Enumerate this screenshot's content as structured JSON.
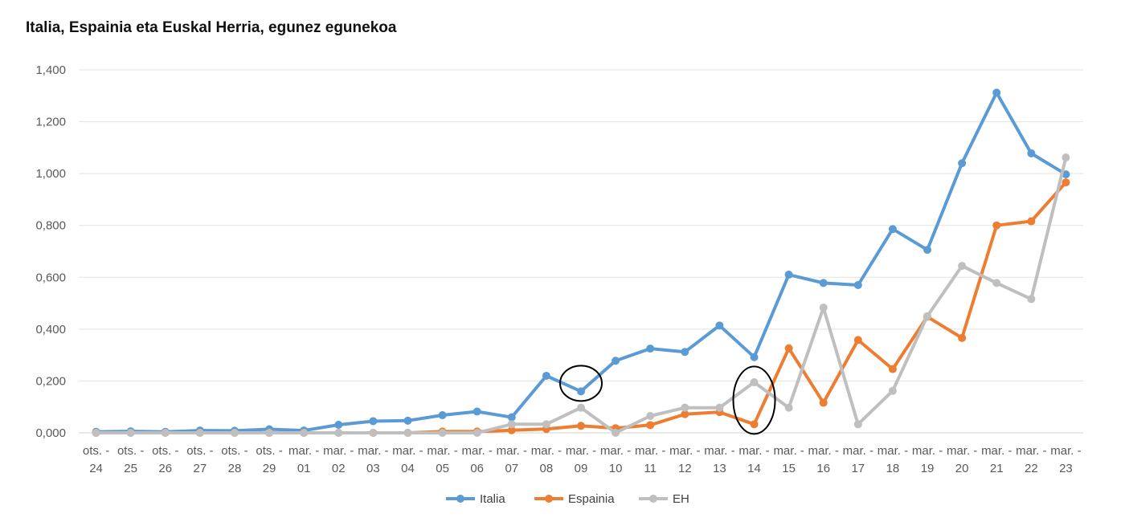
{
  "chart_data": {
    "type": "line",
    "title": "Italia, Espainia eta Euskal Herria, egunez egunekoa",
    "xlabel": "",
    "ylabel": "",
    "ylim": [
      0,
      1.4
    ],
    "y_ticks": [
      "0,000",
      "0,200",
      "0,400",
      "0,600",
      "0,800",
      "1,000",
      "1,200",
      "1,400"
    ],
    "categories": [
      "ots. - 24",
      "ots. - 25",
      "ots. - 26",
      "ots. - 27",
      "ots. - 28",
      "ots. - 29",
      "mar. - 01",
      "mar. - 02",
      "mar. - 03",
      "mar. - 04",
      "mar. - 05",
      "mar. - 06",
      "mar. - 07",
      "mar. - 08",
      "mar. - 09",
      "mar. - 10",
      "mar. - 11",
      "mar. - 12",
      "mar. - 13",
      "mar. - 14",
      "mar. - 15",
      "mar. - 16",
      "mar. - 17",
      "mar. - 18",
      "mar. - 19",
      "mar. - 20",
      "mar. - 21",
      "mar. - 22",
      "mar. - 23"
    ],
    "category_lines": [
      [
        "ots. -",
        "24"
      ],
      [
        "ots. -",
        "25"
      ],
      [
        "ots. -",
        "26"
      ],
      [
        "ots. -",
        "27"
      ],
      [
        "ots. -",
        "28"
      ],
      [
        "ots. -",
        "29"
      ],
      [
        "mar. -",
        "01"
      ],
      [
        "mar. -",
        "02"
      ],
      [
        "mar. -",
        "03"
      ],
      [
        "mar. -",
        "04"
      ],
      [
        "mar. -",
        "05"
      ],
      [
        "mar. -",
        "06"
      ],
      [
        "mar. -",
        "07"
      ],
      [
        "mar. -",
        "08"
      ],
      [
        "mar. -",
        "09"
      ],
      [
        "mar. -",
        "10"
      ],
      [
        "mar. -",
        "11"
      ],
      [
        "mar. -",
        "12"
      ],
      [
        "mar. -",
        "13"
      ],
      [
        "mar. -",
        "14"
      ],
      [
        "mar. -",
        "15"
      ],
      [
        "mar. -",
        "16"
      ],
      [
        "mar. -",
        "17"
      ],
      [
        "mar. -",
        "18"
      ],
      [
        "mar. -",
        "19"
      ],
      [
        "mar. -",
        "20"
      ],
      [
        "mar. -",
        "21"
      ],
      [
        "mar. -",
        "22"
      ],
      [
        "mar. -",
        "23"
      ]
    ],
    "series": [
      {
        "name": "Italia",
        "color": "#5b9bd5",
        "values": [
          0.004,
          0.006,
          0.004,
          0.009,
          0.008,
          0.014,
          0.009,
          0.031,
          0.045,
          0.047,
          0.068,
          0.082,
          0.06,
          0.22,
          0.16,
          0.278,
          0.325,
          0.312,
          0.414,
          0.292,
          0.61,
          0.578,
          0.57,
          0.786,
          0.706,
          1.04,
          1.312,
          1.078,
          0.997
        ]
      },
      {
        "name": "Espainia",
        "color": "#ed7d31",
        "values": [
          0.0,
          0.0,
          0.0,
          0.0,
          0.0,
          0.0,
          0.0,
          0.0,
          0.0,
          0.0,
          0.005,
          0.005,
          0.01,
          0.015,
          0.027,
          0.018,
          0.03,
          0.072,
          0.08,
          0.033,
          0.326,
          0.116,
          0.358,
          0.246,
          0.448,
          0.366,
          0.8,
          0.816,
          0.966
        ]
      },
      {
        "name": "EH",
        "color": "#bfbfbf",
        "values": [
          0.0,
          0.0,
          0.0,
          0.0,
          0.0,
          0.0,
          0.0,
          0.0,
          0.0,
          0.0,
          0.0,
          0.0,
          0.033,
          0.033,
          0.097,
          0.0,
          0.065,
          0.097,
          0.097,
          0.195,
          0.097,
          0.483,
          0.033,
          0.162,
          0.45,
          0.644,
          0.578,
          0.516,
          1.062
        ]
      }
    ],
    "annotations": [
      {
        "type": "ellipse",
        "category": "mar. - 09",
        "series": "Italia"
      },
      {
        "type": "ellipse",
        "category": "mar. - 14",
        "series": "Espainia"
      }
    ],
    "grid": true,
    "legend": "bottom-center"
  }
}
